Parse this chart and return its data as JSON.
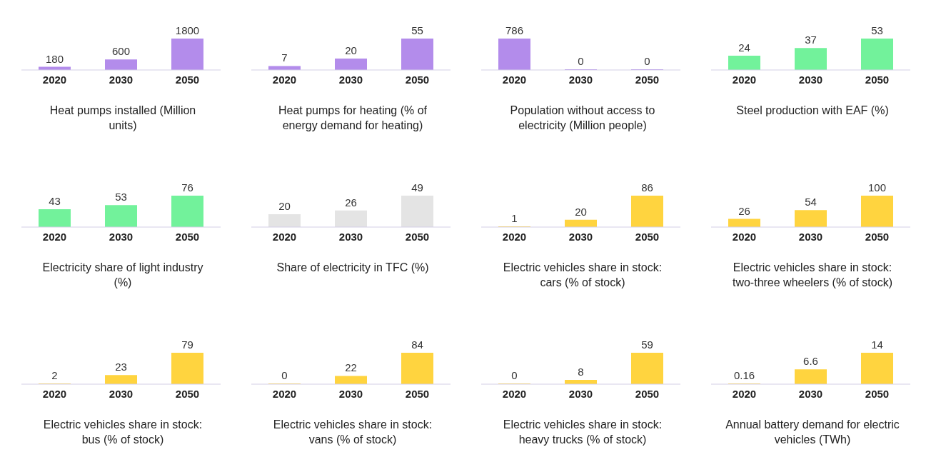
{
  "chart_data": [
    {
      "type": "bar",
      "title": "Heat pumps installed (Million units)",
      "categories": [
        "2020",
        "2030",
        "2050"
      ],
      "values": [
        180,
        600,
        1800
      ],
      "color": "#b38ceb",
      "data_labels": true
    },
    {
      "type": "bar",
      "title": "Heat pumps for heating (% of energy demand for heating)",
      "categories": [
        "2020",
        "2030",
        "2050"
      ],
      "values": [
        7,
        20,
        55
      ],
      "color": "#b38ceb",
      "data_labels": true
    },
    {
      "type": "bar",
      "title": "Population without access to electricity (Million people)",
      "categories": [
        "2020",
        "2030",
        "2050"
      ],
      "values": [
        786,
        0,
        0
      ],
      "color": "#b38ceb",
      "data_labels": true
    },
    {
      "type": "bar",
      "title": "Steel production with EAF (%)",
      "categories": [
        "2020",
        "2030",
        "2050"
      ],
      "values": [
        24,
        37,
        53
      ],
      "color": "#72f29b",
      "data_labels": true
    },
    {
      "type": "bar",
      "title": "Electricity share of light industry (%)",
      "categories": [
        "2020",
        "2030",
        "2050"
      ],
      "values": [
        43,
        53,
        76
      ],
      "color": "#72f29b",
      "data_labels": true
    },
    {
      "type": "bar",
      "title": "Share of electricity in TFC (%)",
      "categories": [
        "2020",
        "2030",
        "2050"
      ],
      "values": [
        20,
        26,
        49
      ],
      "color": "#e4e4e4",
      "data_labels": true
    },
    {
      "type": "bar",
      "title": "Electric vehicles share in stock: cars (% of stock)",
      "categories": [
        "2020",
        "2030",
        "2050"
      ],
      "values": [
        1,
        20,
        86
      ],
      "color": "#ffd43f",
      "data_labels": true
    },
    {
      "type": "bar",
      "title": "Electric vehicles share in stock: two-three wheelers (% of stock)",
      "categories": [
        "2020",
        "2030",
        "2050"
      ],
      "values": [
        26,
        54,
        100
      ],
      "color": "#ffd43f",
      "data_labels": true
    },
    {
      "type": "bar",
      "title": "Electric vehicles share in stock: bus (% of stock)",
      "categories": [
        "2020",
        "2030",
        "2050"
      ],
      "values": [
        2,
        23,
        79
      ],
      "color": "#ffd43f",
      "data_labels": true
    },
    {
      "type": "bar",
      "title": "Electric vehicles share in stock: vans (% of stock)",
      "categories": [
        "2020",
        "2030",
        "2050"
      ],
      "values": [
        0,
        22,
        84
      ],
      "color": "#ffd43f",
      "data_labels": true
    },
    {
      "type": "bar",
      "title": "Electric vehicles share in stock: heavy trucks (% of stock)",
      "categories": [
        "2020",
        "2030",
        "2050"
      ],
      "values": [
        0,
        8,
        59
      ],
      "color": "#ffd43f",
      "data_labels": true
    },
    {
      "type": "bar",
      "title": "Annual battery demand for electric vehicles (TWh)",
      "categories": [
        "2020",
        "2030",
        "2050"
      ],
      "values": [
        0.16,
        6.6,
        14
      ],
      "color": "#ffd43f",
      "data_labels": true
    }
  ]
}
